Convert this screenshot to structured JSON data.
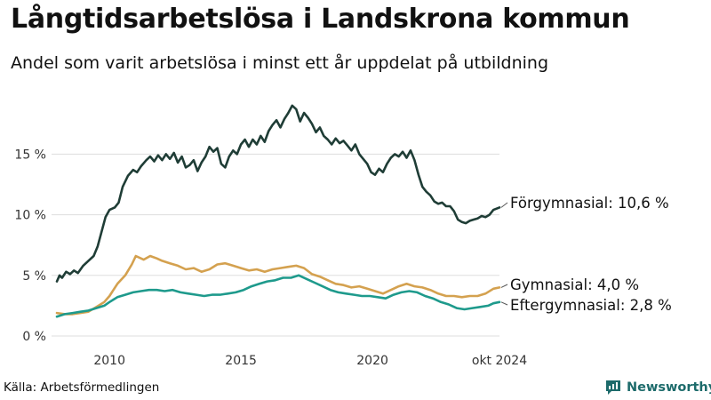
{
  "header": {
    "title": "Långtidsarbetslösa i Landskrona kommun",
    "subtitle": "Andel som varit arbetslösa i minst ett år uppdelat på utbildning"
  },
  "footer": {
    "source": "Källa: Arbetsförmedlingen",
    "brand_icon": "newsworthy-logo-icon",
    "brand_name": "Newsworthy"
  },
  "colors": {
    "forgymnasial": "#1f3d36",
    "gymnasial": "#d4a14f",
    "eftergymnasial": "#1e9a8c",
    "brand": "#1d6b6b",
    "grid": "#dddddd"
  },
  "chart_data": {
    "type": "line",
    "title": "Långtidsarbetslösa i Landskrona kommun",
    "subtitle": "Andel som varit arbetslösa i minst ett år uppdelat på utbildning",
    "xlabel": "",
    "ylabel": "",
    "x_range": [
      2008.0,
      2024.83
    ],
    "ylim": [
      0,
      19.5
    ],
    "y_ticks": [
      {
        "value": 0,
        "label": "0 %"
      },
      {
        "value": 5,
        "label": "5 %"
      },
      {
        "value": 10,
        "label": "10 %"
      },
      {
        "value": 15,
        "label": "15 %"
      }
    ],
    "x_ticks": [
      {
        "value": 2010,
        "label": "2010"
      },
      {
        "value": 2015,
        "label": "2015"
      },
      {
        "value": 2020,
        "label": "2020"
      },
      {
        "value": 2024.83,
        "label": "okt 2024"
      }
    ],
    "grid": true,
    "legend": "end-of-line labels",
    "series": [
      {
        "name": "Förgymnasial",
        "end_label": "Förgymnasial: 10,6 %",
        "color": "#1f3d36",
        "points": [
          [
            2008.0,
            4.5
          ],
          [
            2008.1,
            5.0
          ],
          [
            2008.2,
            4.8
          ],
          [
            2008.35,
            5.3
          ],
          [
            2008.5,
            5.1
          ],
          [
            2008.65,
            5.4
          ],
          [
            2008.8,
            5.2
          ],
          [
            2009.0,
            5.8
          ],
          [
            2009.2,
            6.2
          ],
          [
            2009.4,
            6.6
          ],
          [
            2009.55,
            7.4
          ],
          [
            2009.7,
            8.6
          ],
          [
            2009.85,
            9.8
          ],
          [
            2010.0,
            10.4
          ],
          [
            2010.2,
            10.6
          ],
          [
            2010.35,
            11.0
          ],
          [
            2010.5,
            12.3
          ],
          [
            2010.7,
            13.2
          ],
          [
            2010.9,
            13.7
          ],
          [
            2011.05,
            13.5
          ],
          [
            2011.2,
            14.0
          ],
          [
            2011.4,
            14.5
          ],
          [
            2011.55,
            14.8
          ],
          [
            2011.7,
            14.4
          ],
          [
            2011.85,
            14.9
          ],
          [
            2012.0,
            14.5
          ],
          [
            2012.15,
            15.0
          ],
          [
            2012.3,
            14.6
          ],
          [
            2012.45,
            15.1
          ],
          [
            2012.6,
            14.3
          ],
          [
            2012.75,
            14.8
          ],
          [
            2012.9,
            13.9
          ],
          [
            2013.05,
            14.1
          ],
          [
            2013.2,
            14.5
          ],
          [
            2013.35,
            13.6
          ],
          [
            2013.5,
            14.3
          ],
          [
            2013.65,
            14.8
          ],
          [
            2013.8,
            15.6
          ],
          [
            2013.95,
            15.2
          ],
          [
            2014.1,
            15.5
          ],
          [
            2014.25,
            14.2
          ],
          [
            2014.4,
            13.9
          ],
          [
            2014.55,
            14.8
          ],
          [
            2014.7,
            15.3
          ],
          [
            2014.85,
            15.0
          ],
          [
            2015.0,
            15.8
          ],
          [
            2015.15,
            16.2
          ],
          [
            2015.3,
            15.6
          ],
          [
            2015.45,
            16.2
          ],
          [
            2015.6,
            15.8
          ],
          [
            2015.75,
            16.5
          ],
          [
            2015.9,
            16.0
          ],
          [
            2016.05,
            16.9
          ],
          [
            2016.2,
            17.4
          ],
          [
            2016.35,
            17.8
          ],
          [
            2016.5,
            17.2
          ],
          [
            2016.65,
            17.9
          ],
          [
            2016.8,
            18.4
          ],
          [
            2016.95,
            19.0
          ],
          [
            2017.1,
            18.7
          ],
          [
            2017.25,
            17.7
          ],
          [
            2017.4,
            18.4
          ],
          [
            2017.55,
            18.0
          ],
          [
            2017.7,
            17.5
          ],
          [
            2017.85,
            16.8
          ],
          [
            2018.0,
            17.2
          ],
          [
            2018.15,
            16.5
          ],
          [
            2018.3,
            16.2
          ],
          [
            2018.45,
            15.8
          ],
          [
            2018.6,
            16.3
          ],
          [
            2018.75,
            15.9
          ],
          [
            2018.9,
            16.1
          ],
          [
            2019.05,
            15.7
          ],
          [
            2019.2,
            15.3
          ],
          [
            2019.35,
            15.8
          ],
          [
            2019.5,
            15.0
          ],
          [
            2019.65,
            14.6
          ],
          [
            2019.8,
            14.2
          ],
          [
            2019.95,
            13.5
          ],
          [
            2020.1,
            13.3
          ],
          [
            2020.25,
            13.8
          ],
          [
            2020.4,
            13.5
          ],
          [
            2020.55,
            14.2
          ],
          [
            2020.7,
            14.7
          ],
          [
            2020.85,
            15.0
          ],
          [
            2021.0,
            14.8
          ],
          [
            2021.15,
            15.2
          ],
          [
            2021.3,
            14.7
          ],
          [
            2021.45,
            15.3
          ],
          [
            2021.6,
            14.5
          ],
          [
            2021.75,
            13.3
          ],
          [
            2021.9,
            12.3
          ],
          [
            2022.05,
            11.9
          ],
          [
            2022.2,
            11.6
          ],
          [
            2022.35,
            11.1
          ],
          [
            2022.5,
            10.9
          ],
          [
            2022.65,
            11.0
          ],
          [
            2022.8,
            10.7
          ],
          [
            2022.95,
            10.7
          ],
          [
            2023.1,
            10.3
          ],
          [
            2023.25,
            9.6
          ],
          [
            2023.4,
            9.4
          ],
          [
            2023.55,
            9.3
          ],
          [
            2023.7,
            9.5
          ],
          [
            2023.85,
            9.6
          ],
          [
            2024.0,
            9.7
          ],
          [
            2024.15,
            9.9
          ],
          [
            2024.3,
            9.8
          ],
          [
            2024.45,
            10.0
          ],
          [
            2024.6,
            10.4
          ],
          [
            2024.83,
            10.6
          ]
        ]
      },
      {
        "name": "Gymnasial",
        "end_label": "Gymnasial:  4,0 %",
        "color": "#d4a14f",
        "points": [
          [
            2008.0,
            1.9
          ],
          [
            2008.3,
            1.8
          ],
          [
            2008.6,
            1.8
          ],
          [
            2008.9,
            1.9
          ],
          [
            2009.2,
            2.0
          ],
          [
            2009.5,
            2.4
          ],
          [
            2009.8,
            2.8
          ],
          [
            2010.0,
            3.3
          ],
          [
            2010.3,
            4.3
          ],
          [
            2010.6,
            5.0
          ],
          [
            2010.85,
            5.9
          ],
          [
            2011.0,
            6.6
          ],
          [
            2011.3,
            6.3
          ],
          [
            2011.55,
            6.6
          ],
          [
            2011.8,
            6.4
          ],
          [
            2012.0,
            6.2
          ],
          [
            2012.3,
            6.0
          ],
          [
            2012.6,
            5.8
          ],
          [
            2012.9,
            5.5
          ],
          [
            2013.2,
            5.6
          ],
          [
            2013.5,
            5.3
          ],
          [
            2013.8,
            5.5
          ],
          [
            2014.1,
            5.9
          ],
          [
            2014.4,
            6.0
          ],
          [
            2014.7,
            5.8
          ],
          [
            2015.0,
            5.6
          ],
          [
            2015.3,
            5.4
          ],
          [
            2015.6,
            5.5
          ],
          [
            2015.9,
            5.3
          ],
          [
            2016.2,
            5.5
          ],
          [
            2016.5,
            5.6
          ],
          [
            2016.8,
            5.7
          ],
          [
            2017.1,
            5.8
          ],
          [
            2017.4,
            5.6
          ],
          [
            2017.7,
            5.1
          ],
          [
            2018.0,
            4.9
          ],
          [
            2018.3,
            4.6
          ],
          [
            2018.6,
            4.3
          ],
          [
            2018.9,
            4.2
          ],
          [
            2019.2,
            4.0
          ],
          [
            2019.5,
            4.1
          ],
          [
            2019.8,
            3.9
          ],
          [
            2020.1,
            3.7
          ],
          [
            2020.4,
            3.5
          ],
          [
            2020.7,
            3.8
          ],
          [
            2021.0,
            4.1
          ],
          [
            2021.3,
            4.3
          ],
          [
            2021.6,
            4.1
          ],
          [
            2021.9,
            4.0
          ],
          [
            2022.2,
            3.8
          ],
          [
            2022.5,
            3.5
          ],
          [
            2022.8,
            3.3
          ],
          [
            2023.1,
            3.3
          ],
          [
            2023.4,
            3.2
          ],
          [
            2023.7,
            3.3
          ],
          [
            2024.0,
            3.3
          ],
          [
            2024.3,
            3.5
          ],
          [
            2024.6,
            3.9
          ],
          [
            2024.83,
            4.0
          ]
        ]
      },
      {
        "name": "Eftergymnasial",
        "end_label": "Eftergymnasial:  2,8 %",
        "color": "#1e9a8c",
        "points": [
          [
            2008.0,
            1.6
          ],
          [
            2008.3,
            1.8
          ],
          [
            2008.6,
            1.9
          ],
          [
            2008.9,
            2.0
          ],
          [
            2009.2,
            2.1
          ],
          [
            2009.5,
            2.3
          ],
          [
            2009.8,
            2.5
          ],
          [
            2010.0,
            2.8
          ],
          [
            2010.3,
            3.2
          ],
          [
            2010.6,
            3.4
          ],
          [
            2010.9,
            3.6
          ],
          [
            2011.2,
            3.7
          ],
          [
            2011.5,
            3.8
          ],
          [
            2011.8,
            3.8
          ],
          [
            2012.1,
            3.7
          ],
          [
            2012.4,
            3.8
          ],
          [
            2012.7,
            3.6
          ],
          [
            2013.0,
            3.5
          ],
          [
            2013.3,
            3.4
          ],
          [
            2013.6,
            3.3
          ],
          [
            2013.9,
            3.4
          ],
          [
            2014.2,
            3.4
          ],
          [
            2014.5,
            3.5
          ],
          [
            2014.8,
            3.6
          ],
          [
            2015.1,
            3.8
          ],
          [
            2015.4,
            4.1
          ],
          [
            2015.7,
            4.3
          ],
          [
            2016.0,
            4.5
          ],
          [
            2016.3,
            4.6
          ],
          [
            2016.6,
            4.8
          ],
          [
            2016.9,
            4.8
          ],
          [
            2017.2,
            5.0
          ],
          [
            2017.5,
            4.7
          ],
          [
            2017.8,
            4.4
          ],
          [
            2018.1,
            4.1
          ],
          [
            2018.4,
            3.8
          ],
          [
            2018.7,
            3.6
          ],
          [
            2019.0,
            3.5
          ],
          [
            2019.3,
            3.4
          ],
          [
            2019.6,
            3.3
          ],
          [
            2019.9,
            3.3
          ],
          [
            2020.2,
            3.2
          ],
          [
            2020.5,
            3.1
          ],
          [
            2020.8,
            3.4
          ],
          [
            2021.1,
            3.6
          ],
          [
            2021.4,
            3.7
          ],
          [
            2021.7,
            3.6
          ],
          [
            2022.0,
            3.3
          ],
          [
            2022.3,
            3.1
          ],
          [
            2022.6,
            2.8
          ],
          [
            2022.9,
            2.6
          ],
          [
            2023.2,
            2.3
          ],
          [
            2023.5,
            2.2
          ],
          [
            2023.8,
            2.3
          ],
          [
            2024.1,
            2.4
          ],
          [
            2024.4,
            2.5
          ],
          [
            2024.6,
            2.7
          ],
          [
            2024.83,
            2.8
          ]
        ]
      }
    ]
  }
}
